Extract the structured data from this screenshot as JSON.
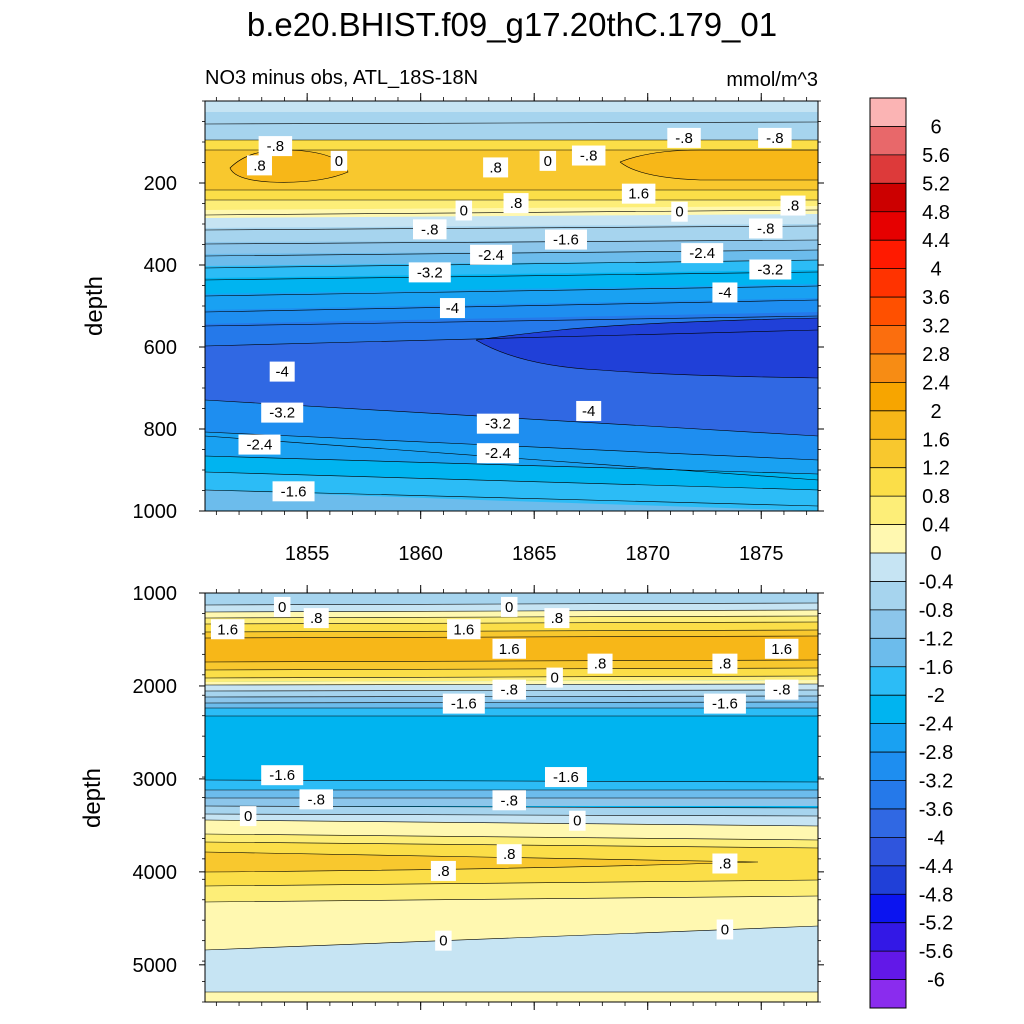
{
  "chart_data": {
    "type": "contour",
    "title": "b.e20.BHIST.f09_g17.20thC.179_01",
    "subtitle_left": "NO3 minus obs, ATL_18S-18N",
    "subtitle_right": "mmol/m^3",
    "xlim": [
      1850.5,
      1877.5
    ],
    "x_ticks": [
      "1855",
      "1860",
      "1865",
      "1870",
      "1875"
    ],
    "colorbar": {
      "levels": [
        "6",
        "5.6",
        "5.2",
        "4.8",
        "4.4",
        "4",
        "3.6",
        "3.2",
        "2.8",
        "2.4",
        "2",
        "1.6",
        "1.2",
        "0.8",
        "0.4",
        "0",
        "-0.4",
        "-0.8",
        "-1.2",
        "-1.6",
        "-2",
        "-2.4",
        "-2.8",
        "-3.2",
        "-3.6",
        "-4",
        "-4.4",
        "-4.8",
        "-5.2",
        "-5.6",
        "-6"
      ],
      "colors": [
        "#fbb4b4",
        "#e8686a",
        "#dd3a3a",
        "#cc0000",
        "#e60000",
        "#ff1a00",
        "#ff3300",
        "#ff5000",
        "#fb6e0e",
        "#f78c14",
        "#f7a500",
        "#f7b718",
        "#f8c82e",
        "#fbde48",
        "#fdee78",
        "#fff8b0",
        "#c6e4f3",
        "#a6d4ee",
        "#8cc6eb",
        "#6cbcec",
        "#2cbcf6",
        "#00b4f0",
        "#19a1f2",
        "#1e8ef0",
        "#2579ea",
        "#3068e3",
        "#2f55dd",
        "#2040d8",
        "#0b14f0",
        "#3318e6",
        "#6218e8",
        "#8a2cee"
      ]
    },
    "top_panel": {
      "ylabel": "depth",
      "ylim": [
        1000,
        0
      ],
      "y_ticks": [
        "200",
        "400",
        "600",
        "800",
        "1000"
      ],
      "contour_labels": [
        {
          "text": "-.8",
          "x": 1853.6,
          "y": 110
        },
        {
          "text": ".8",
          "x": 1852.9,
          "y": 157
        },
        {
          "text": "0",
          "x": 1856.4,
          "y": 146
        },
        {
          "text": ".8",
          "x": 1863.3,
          "y": 162
        },
        {
          "text": "0",
          "x": 1865.6,
          "y": 146
        },
        {
          "text": "-.8",
          "x": 1867.4,
          "y": 133
        },
        {
          "text": "-.8",
          "x": 1871.6,
          "y": 90
        },
        {
          "text": "-.8",
          "x": 1875.6,
          "y": 90
        },
        {
          "text": "1.6",
          "x": 1869.6,
          "y": 226
        },
        {
          "text": ".8",
          "x": 1864.2,
          "y": 249
        },
        {
          "text": "0",
          "x": 1861.9,
          "y": 267
        },
        {
          "text": ".8",
          "x": 1876.4,
          "y": 255
        },
        {
          "text": "0",
          "x": 1871.4,
          "y": 270
        },
        {
          "text": "-.8",
          "x": 1860.4,
          "y": 313
        },
        {
          "text": "-.8",
          "x": 1875.2,
          "y": 311
        },
        {
          "text": "-1.6",
          "x": 1866.4,
          "y": 338
        },
        {
          "text": "-2.4",
          "x": 1863.1,
          "y": 375
        },
        {
          "text": "-2.4",
          "x": 1872.4,
          "y": 371
        },
        {
          "text": "-3.2",
          "x": 1860.4,
          "y": 418
        },
        {
          "text": "-3.2",
          "x": 1875.4,
          "y": 411
        },
        {
          "text": "-4",
          "x": 1861.4,
          "y": 505
        },
        {
          "text": "-4",
          "x": 1873.4,
          "y": 467
        },
        {
          "text": "-4",
          "x": 1853.9,
          "y": 660
        },
        {
          "text": "-4",
          "x": 1867.4,
          "y": 756
        },
        {
          "text": "-3.2",
          "x": 1853.9,
          "y": 760
        },
        {
          "text": "-3.2",
          "x": 1863.4,
          "y": 787
        },
        {
          "text": "-2.4",
          "x": 1852.9,
          "y": 838
        },
        {
          "text": "-2.4",
          "x": 1863.4,
          "y": 859
        },
        {
          "text": "-1.6",
          "x": 1854.4,
          "y": 952
        }
      ]
    },
    "bottom_panel": {
      "ylabel": "depth",
      "ylim": [
        5400,
        1000
      ],
      "y_ticks": [
        "1000",
        "2000",
        "3000",
        "4000",
        "5000"
      ],
      "contour_labels": [
        {
          "text": "0",
          "x": 1853.9,
          "y": 1150
        },
        {
          "text": ".8",
          "x": 1855.4,
          "y": 1270
        },
        {
          "text": "1.6",
          "x": 1851.5,
          "y": 1390
        },
        {
          "text": "0",
          "x": 1863.9,
          "y": 1150
        },
        {
          "text": ".8",
          "x": 1866.0,
          "y": 1270
        },
        {
          "text": "1.6",
          "x": 1861.9,
          "y": 1390
        },
        {
          "text": "1.6",
          "x": 1863.9,
          "y": 1600
        },
        {
          "text": ".8",
          "x": 1867.9,
          "y": 1760
        },
        {
          "text": "0",
          "x": 1865.9,
          "y": 1910
        },
        {
          "text": ".8",
          "x": 1873.4,
          "y": 1760
        },
        {
          "text": "1.6",
          "x": 1875.9,
          "y": 1600
        },
        {
          "text": "-.8",
          "x": 1863.9,
          "y": 2040
        },
        {
          "text": "-.8",
          "x": 1875.9,
          "y": 2040
        },
        {
          "text": "-1.6",
          "x": 1861.9,
          "y": 2190
        },
        {
          "text": "-1.6",
          "x": 1873.4,
          "y": 2190
        },
        {
          "text": "-1.6",
          "x": 1853.9,
          "y": 2960
        },
        {
          "text": "-1.6",
          "x": 1866.4,
          "y": 2980
        },
        {
          "text": "-.8",
          "x": 1855.4,
          "y": 3220
        },
        {
          "text": "-.8",
          "x": 1863.9,
          "y": 3230
        },
        {
          "text": "0",
          "x": 1852.4,
          "y": 3400
        },
        {
          "text": "0",
          "x": 1866.9,
          "y": 3450
        },
        {
          "text": ".8",
          "x": 1863.9,
          "y": 3810
        },
        {
          "text": ".8",
          "x": 1861.0,
          "y": 3990
        },
        {
          "text": ".8",
          "x": 1873.4,
          "y": 3910
        },
        {
          "text": "0",
          "x": 1861.0,
          "y": 4740
        },
        {
          "text": "0",
          "x": 1873.4,
          "y": 4620
        }
      ]
    }
  }
}
